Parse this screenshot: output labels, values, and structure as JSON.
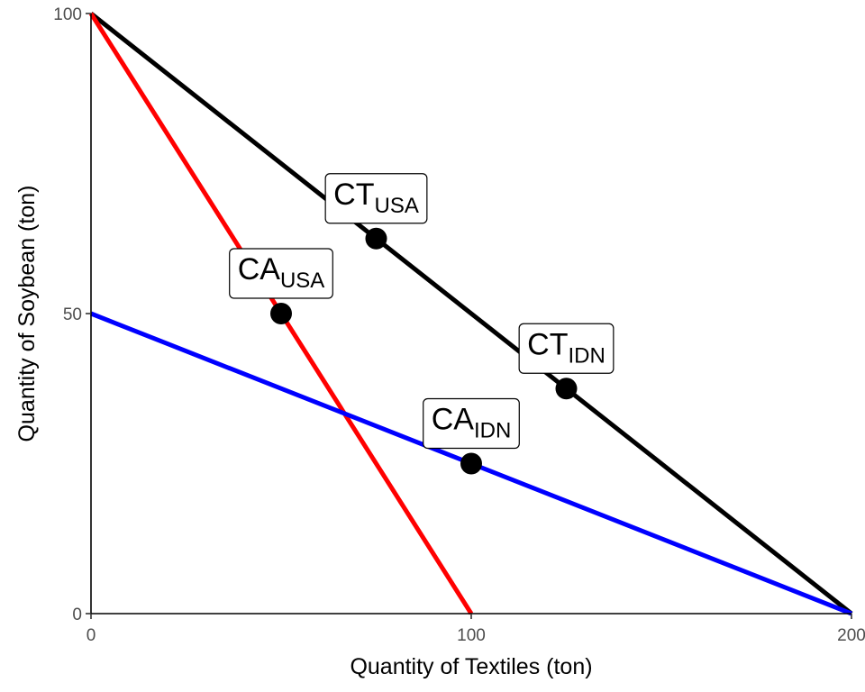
{
  "chart_data": {
    "type": "line",
    "title": "",
    "xlabel": "Quantity of Textiles (ton)",
    "ylabel": "Quantity of Soybean (ton)",
    "xlim": [
      0,
      200
    ],
    "ylim": [
      0,
      100
    ],
    "x_ticks": [
      "0",
      "100",
      "200"
    ],
    "y_ticks": [
      "0",
      "50",
      "100"
    ],
    "grid": false,
    "series": [
      {
        "color": "#000000",
        "points": [
          [
            0,
            100
          ],
          [
            200,
            0
          ]
        ]
      },
      {
        "color": "#ff0000",
        "points": [
          [
            0,
            100
          ],
          [
            100,
            0
          ]
        ]
      },
      {
        "color": "#0000ff",
        "points": [
          [
            0,
            50
          ],
          [
            200,
            0
          ]
        ]
      }
    ],
    "points": [
      {
        "label": "CT",
        "sub": "USA",
        "x": 75,
        "y": 62.5
      },
      {
        "label": "CA",
        "sub": "USA",
        "x": 50,
        "y": 50
      },
      {
        "label": "CT",
        "sub": "IDN",
        "x": 125,
        "y": 37.5
      },
      {
        "label": "CA",
        "sub": "IDN",
        "x": 100,
        "y": 25
      }
    ]
  }
}
